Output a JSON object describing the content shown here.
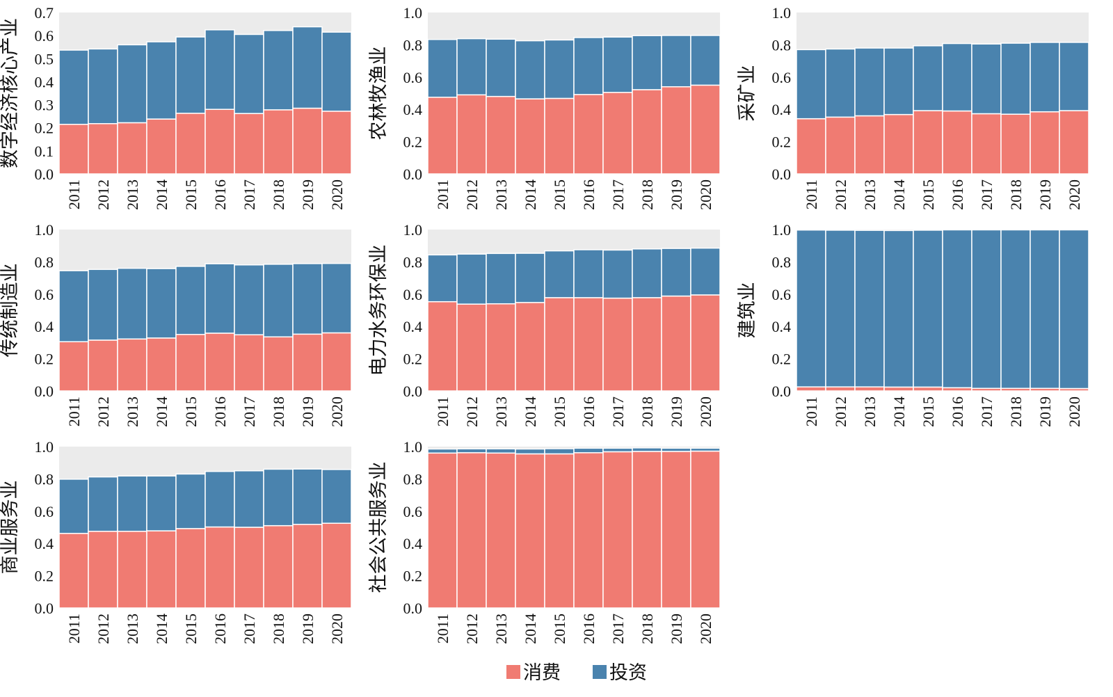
{
  "legend": [
    {
      "label": "消费",
      "color": "#F07B72"
    },
    {
      "label": "投资",
      "color": "#4A83AE"
    }
  ],
  "colors": {
    "consumption": "#F07B72",
    "investment": "#4A83AE",
    "panel_bg": "#EBEBEB"
  },
  "chart_data": [
    {
      "type": "bar",
      "stacked": true,
      "ylabel": "数字经济核心产业",
      "categories": [
        "2011",
        "2012",
        "2013",
        "2014",
        "2015",
        "2016",
        "2017",
        "2018",
        "2019",
        "2020"
      ],
      "ylim": [
        0,
        0.7
      ],
      "yticks": [
        "0.0",
        "0.1",
        "0.2",
        "0.3",
        "0.4",
        "0.5",
        "0.6",
        "0.7"
      ],
      "series": [
        {
          "name": "消费",
          "values": [
            0.215,
            0.218,
            0.222,
            0.238,
            0.263,
            0.28,
            0.262,
            0.278,
            0.285,
            0.272
          ]
        },
        {
          "name": "投资",
          "values": [
            0.322,
            0.324,
            0.338,
            0.335,
            0.331,
            0.345,
            0.343,
            0.344,
            0.353,
            0.343
          ]
        }
      ]
    },
    {
      "type": "bar",
      "stacked": true,
      "ylabel": "农林牧渔业",
      "categories": [
        "2011",
        "2012",
        "2013",
        "2014",
        "2015",
        "2016",
        "2017",
        "2018",
        "2019",
        "2020"
      ],
      "ylim": [
        0,
        1.0
      ],
      "yticks": [
        "0.0",
        "0.2",
        "0.4",
        "0.6",
        "0.8",
        "1.0"
      ],
      "series": [
        {
          "name": "消费",
          "values": [
            0.475,
            0.49,
            0.48,
            0.465,
            0.468,
            0.492,
            0.505,
            0.522,
            0.54,
            0.55
          ]
        },
        {
          "name": "投资",
          "values": [
            0.358,
            0.348,
            0.355,
            0.36,
            0.362,
            0.353,
            0.343,
            0.335,
            0.318,
            0.308
          ]
        }
      ]
    },
    {
      "type": "bar",
      "stacked": true,
      "ylabel": "采矿业",
      "categories": [
        "2011",
        "2012",
        "2013",
        "2014",
        "2015",
        "2016",
        "2017",
        "2018",
        "2019",
        "2020"
      ],
      "ylim": [
        0,
        1.0
      ],
      "yticks": [
        "0.0",
        "0.2",
        "0.4",
        "0.6",
        "0.8",
        "1.0"
      ],
      "series": [
        {
          "name": "消费",
          "values": [
            0.342,
            0.352,
            0.36,
            0.368,
            0.392,
            0.39,
            0.373,
            0.37,
            0.385,
            0.392
          ]
        },
        {
          "name": "投资",
          "values": [
            0.428,
            0.422,
            0.42,
            0.412,
            0.402,
            0.418,
            0.432,
            0.44,
            0.43,
            0.423
          ]
        }
      ]
    },
    {
      "type": "bar",
      "stacked": true,
      "ylabel": "传统制造业",
      "categories": [
        "2011",
        "2012",
        "2013",
        "2014",
        "2015",
        "2016",
        "2017",
        "2018",
        "2019",
        "2020"
      ],
      "ylim": [
        0,
        1.0
      ],
      "yticks": [
        "0.0",
        "0.2",
        "0.4",
        "0.6",
        "0.8",
        "1.0"
      ],
      "series": [
        {
          "name": "消费",
          "values": [
            0.305,
            0.315,
            0.322,
            0.328,
            0.35,
            0.358,
            0.348,
            0.335,
            0.352,
            0.36
          ]
        },
        {
          "name": "投资",
          "values": [
            0.44,
            0.438,
            0.438,
            0.43,
            0.422,
            0.43,
            0.433,
            0.45,
            0.437,
            0.43
          ]
        }
      ]
    },
    {
      "type": "bar",
      "stacked": true,
      "ylabel": "电力水务环保业",
      "categories": [
        "2011",
        "2012",
        "2013",
        "2014",
        "2015",
        "2016",
        "2017",
        "2018",
        "2019",
        "2020"
      ],
      "ylim": [
        0,
        1.0
      ],
      "yticks": [
        "0.0",
        "0.2",
        "0.4",
        "0.6",
        "0.8",
        "1.0"
      ],
      "series": [
        {
          "name": "消费",
          "values": [
            0.553,
            0.538,
            0.54,
            0.548,
            0.578,
            0.578,
            0.575,
            0.578,
            0.588,
            0.595
          ]
        },
        {
          "name": "投资",
          "values": [
            0.29,
            0.31,
            0.312,
            0.305,
            0.29,
            0.297,
            0.298,
            0.302,
            0.295,
            0.29
          ]
        }
      ]
    },
    {
      "type": "bar",
      "stacked": true,
      "ylabel": "建筑业",
      "categories": [
        "2011",
        "2012",
        "2013",
        "2014",
        "2015",
        "2016",
        "2017",
        "2018",
        "2019",
        "2020"
      ],
      "ylim": [
        0,
        1.0
      ],
      "yticks": [
        "0.0",
        "0.2",
        "0.4",
        "0.6",
        "0.8",
        "1.0"
      ],
      "series": [
        {
          "name": "消费",
          "values": [
            0.025,
            0.025,
            0.025,
            0.024,
            0.024,
            0.02,
            0.016,
            0.016,
            0.016,
            0.015
          ]
        },
        {
          "name": "投资",
          "values": [
            0.972,
            0.971,
            0.97,
            0.97,
            0.972,
            0.978,
            0.982,
            0.982,
            0.982,
            0.983
          ]
        }
      ]
    },
    {
      "type": "bar",
      "stacked": true,
      "ylabel": "商业服务业",
      "categories": [
        "2011",
        "2012",
        "2013",
        "2014",
        "2015",
        "2016",
        "2017",
        "2018",
        "2019",
        "2020"
      ],
      "ylim": [
        0,
        1.0
      ],
      "yticks": [
        "0.0",
        "0.2",
        "0.4",
        "0.6",
        "0.8",
        "1.0"
      ],
      "series": [
        {
          "name": "消费",
          "values": [
            0.462,
            0.475,
            0.475,
            0.478,
            0.492,
            0.502,
            0.5,
            0.51,
            0.518,
            0.525
          ]
        },
        {
          "name": "投资",
          "values": [
            0.336,
            0.337,
            0.343,
            0.34,
            0.338,
            0.344,
            0.35,
            0.35,
            0.343,
            0.333
          ]
        }
      ]
    },
    {
      "type": "bar",
      "stacked": true,
      "ylabel": "社会公共服务业",
      "categories": [
        "2011",
        "2012",
        "2013",
        "2014",
        "2015",
        "2016",
        "2017",
        "2018",
        "2019",
        "2020"
      ],
      "ylim": [
        0,
        1.0
      ],
      "yticks": [
        "0.0",
        "0.2",
        "0.4",
        "0.6",
        "0.8",
        "1.0"
      ],
      "series": [
        {
          "name": "消费",
          "values": [
            0.96,
            0.962,
            0.96,
            0.955,
            0.955,
            0.962,
            0.968,
            0.97,
            0.97,
            0.972
          ]
        },
        {
          "name": "投资",
          "values": [
            0.025,
            0.024,
            0.026,
            0.03,
            0.032,
            0.028,
            0.022,
            0.022,
            0.02,
            0.018
          ]
        }
      ]
    }
  ]
}
